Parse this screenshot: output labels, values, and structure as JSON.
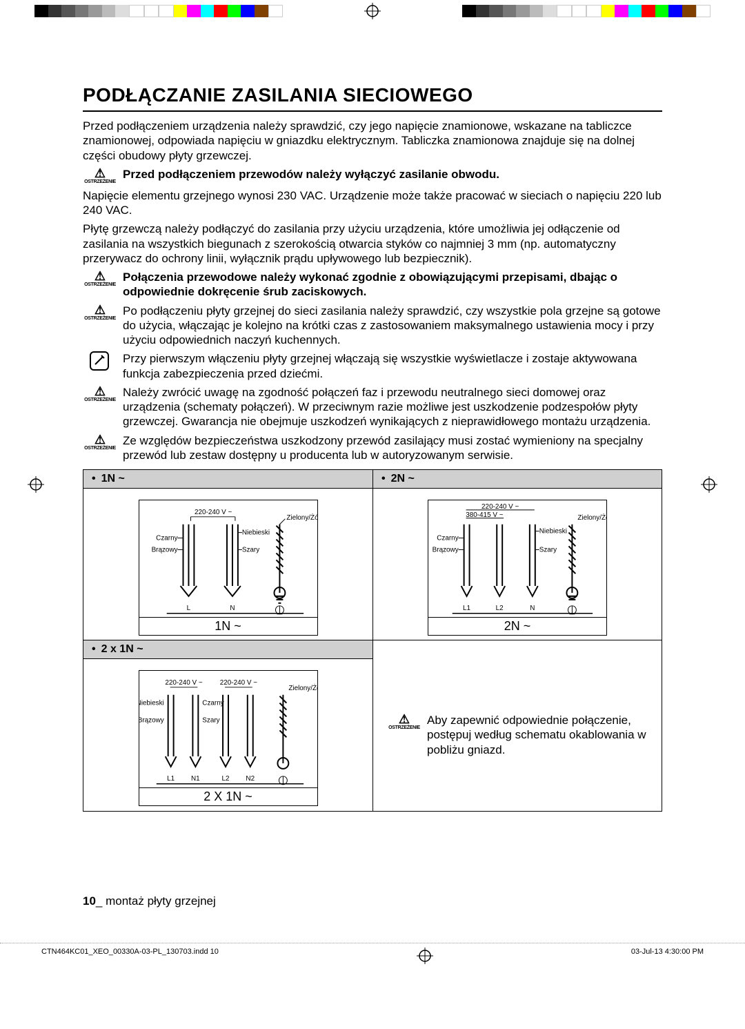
{
  "colorbar": [
    "#000000",
    "#333333",
    "#555555",
    "#777777",
    "#999999",
    "#bbbbbb",
    "#dddddd",
    "#ffffff",
    "#ffffff",
    "#ffffff",
    "#ffff00",
    "#ff00ff",
    "#00ffff",
    "#ff0000",
    "#00ff00",
    "#0000ff",
    "#804000",
    "#ffffff"
  ],
  "title": "PODŁĄCZANIE ZASILANIA SIECIOWEGO",
  "intro": "Przed podłączeniem urządzenia należy sprawdzić, czy jego napięcie znamionowe, wskazane na tabliczce znamionowej, odpowiada napięciu w gniazdku elektrycznym. Tabliczka znamionowa znajduje się na dolnej części obudowy płyty grzewczej.",
  "warn_label": "OSTRZEŻENIE",
  "warn1": "Przed podłączeniem przewodów należy wyłączyć zasilanie obwodu.",
  "para2": "Napięcie elementu grzejnego wynosi 230 VAC. Urządzenie może także pracować w sieciach o napięciu 220 lub 240 VAC.",
  "para3": "Płytę grzewczą należy podłączyć do zasilania przy użyciu urządzenia, które umożliwia jej odłączenie od zasilania na wszystkich biegunach z szerokością otwarcia styków co najmniej 3 mm (np. automatyczny przerywacz do ochrony linii, wyłącznik prądu upływowego lub bezpiecznik).",
  "warn2": "Połączenia przewodowe należy wykonać zgodnie z obowiązującymi przepisami, dbając o odpowiednie dokręcenie śrub zaciskowych.",
  "warn3": "Po podłączeniu płyty grzejnej do sieci zasilania należy sprawdzić, czy wszystkie pola grzejne są gotowe do użycia, włączając je kolejno na krótki czas z zastosowaniem maksymalnego ustawienia mocy i przy użyciu odpowiednich naczyń kuchennych.",
  "info1": "Przy pierwszym włączeniu płyty grzejnej włączają się wszystkie wyświetlacze i zostaje aktywowana funkcja zabezpieczenia przed dziećmi.",
  "warn4": "Należy zwrócić uwagę na zgodność połączeń faz i przewodu neutralnego sieci domowej oraz urządzenia (schematy połączeń). W przeciwnym razie możliwe jest uszkodzenie podzespołów płyty grzewczej. Gwarancja nie obejmuje uszkodzeń wynikających z nieprawidłowego montażu urządzenia.",
  "warn5": "Ze względów bezpieczeństwa uszkodzony przewód zasilający musi zostać wymieniony na specjalny przewód lub zestaw dostępny u producenta lub w autoryzowanym serwisie.",
  "head_1n": "1N ~",
  "head_2n": "2N ~",
  "head_2x1n": "2 x 1N ~",
  "diag1": {
    "caption": "1N ~",
    "voltage": "220-240 V ~",
    "labels": {
      "zielony": "Zielony/Żółto",
      "niebieski": "Niebieski",
      "czarny": "Czarny",
      "brazowy": "Brązowy",
      "szary": "Szary",
      "L": "L",
      "N": "N"
    }
  },
  "diag2": {
    "caption": "2N ~",
    "voltage1": "220-240 V ~",
    "voltage2": "380-415 V ~",
    "labels": {
      "zielony": "Zielony/Żółto",
      "niebieski": "Niebieski",
      "czarny": "Czarny",
      "brazowy": "Brązowy",
      "szary": "Szary",
      "L1": "L1",
      "L2": "L2",
      "N": "N"
    }
  },
  "diag3": {
    "caption": "2 X 1N ~",
    "voltage": "220-240 V ~",
    "labels": {
      "zielony": "Zielony/Żółto",
      "niebieski": "Niebieski",
      "czarny": "Czarny",
      "brazowy": "Brązowy",
      "szary": "Szary",
      "L1": "L1",
      "N1": "N1",
      "L2": "L2",
      "N2": "N2"
    }
  },
  "note": "Aby zapewnić odpowiednie połączenie, postępuj według schematu okablowania w pobliżu gniazd.",
  "page_num": "10",
  "page_label": "_ montaż płyty grzejnej",
  "print_file": "CTN464KC01_XEO_00330A-03-PL_130703.indd   10",
  "print_date": "03-Jul-13   4:30:00 PM"
}
